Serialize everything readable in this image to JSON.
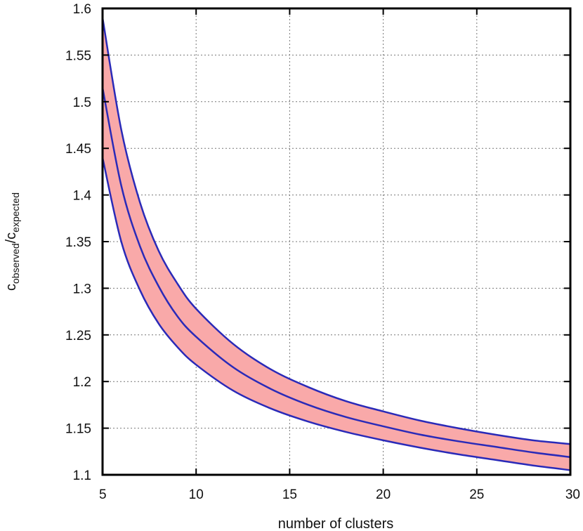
{
  "chart_data": {
    "type": "area",
    "xlabel": "number of clusters",
    "ylabel": {
      "base1": "c",
      "sub1": "observed",
      "slash": "/",
      "base2": "c",
      "sub2": "expected"
    },
    "xlim": [
      5,
      30
    ],
    "ylim": [
      1.1,
      1.6
    ],
    "xticks": [
      5,
      10,
      15,
      20,
      25,
      30
    ],
    "xtick_labels": [
      "5",
      "10",
      "15",
      "20",
      "25",
      "30"
    ],
    "yticks": [
      1.1,
      1.15,
      1.2,
      1.25,
      1.3,
      1.35,
      1.4,
      1.45,
      1.5,
      1.55,
      1.6
    ],
    "ytick_labels": [
      "1.1",
      "1.15",
      "1.2",
      "1.25",
      "1.3",
      "1.35",
      "1.4",
      "1.45",
      "1.5",
      "1.55",
      "1.6"
    ],
    "grid": true,
    "x": [
      5,
      6,
      7,
      8,
      9,
      10,
      12,
      14,
      16,
      18,
      20,
      22,
      24,
      26,
      28,
      30
    ],
    "series": [
      {
        "values": [
          1.59,
          1.47,
          1.392,
          1.34,
          1.305,
          1.278,
          1.24,
          1.213,
          1.194,
          1.179,
          1.168,
          1.158,
          1.15,
          1.143,
          1.137,
          1.133
        ]
      },
      {
        "values": [
          1.515,
          1.41,
          1.345,
          1.302,
          1.27,
          1.248,
          1.215,
          1.192,
          1.175,
          1.162,
          1.152,
          1.143,
          1.136,
          1.13,
          1.124,
          1.119
        ]
      },
      {
        "values": [
          1.44,
          1.35,
          1.298,
          1.262,
          1.237,
          1.218,
          1.19,
          1.171,
          1.157,
          1.146,
          1.137,
          1.129,
          1.122,
          1.116,
          1.11,
          1.105
        ]
      }
    ],
    "band": {
      "upper_series": 0,
      "lower_series": 2
    },
    "colors": {
      "line": "#2a2ab8",
      "band_fill": "#f9a9a9",
      "frame": "#000000",
      "grid": "#777777"
    }
  }
}
